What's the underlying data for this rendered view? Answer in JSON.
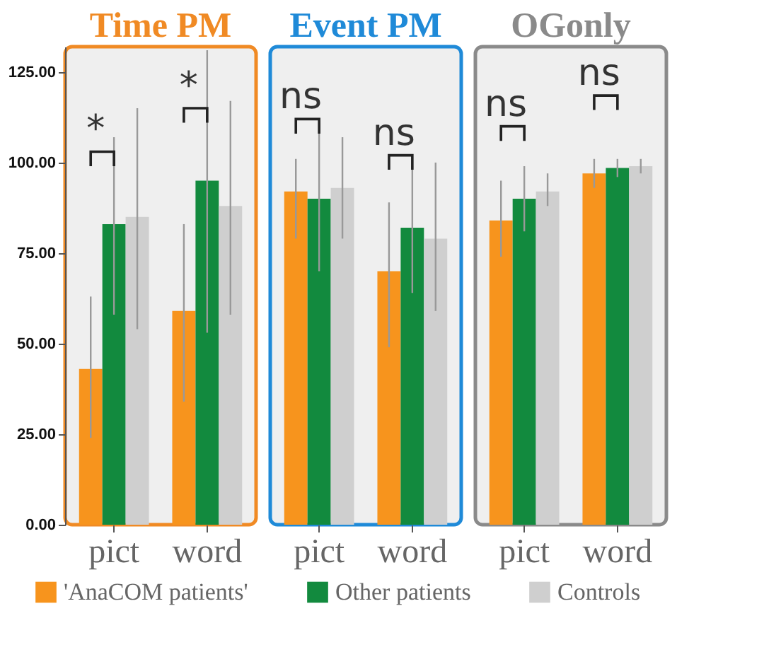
{
  "chart_data": [
    {
      "type": "bar",
      "title": "Time PM",
      "categories": [
        "pict",
        "word"
      ],
      "ylim": [
        0,
        132
      ],
      "yticks": [
        {
          "value": 0,
          "label": "0.00"
        },
        {
          "value": 25,
          "label": "25.00"
        },
        {
          "value": 50,
          "label": "50.00"
        },
        {
          "value": 75,
          "label": "75.00"
        },
        {
          "value": 100,
          "label": "100.00"
        },
        {
          "value": 125,
          "label": "125.00"
        }
      ],
      "series": [
        {
          "name": "'AnaCOM patients'",
          "color": "#f7941d",
          "values": [
            43,
            59
          ],
          "errors": [
            [
              24,
              63
            ],
            [
              34,
              83
            ]
          ]
        },
        {
          "name": "Other patients",
          "color": "#128a3e",
          "values": [
            83,
            95
          ],
          "errors": [
            [
              58,
              107
            ],
            [
              53,
              131
            ]
          ]
        },
        {
          "name": "Controls",
          "color": "#cfcfcf",
          "values": [
            85,
            88
          ],
          "errors": [
            [
              54,
              115
            ],
            [
              58,
              117
            ]
          ]
        }
      ],
      "annotations": [
        "*",
        "*"
      ],
      "grid": false,
      "legend": "bottom"
    },
    {
      "type": "bar",
      "title": "Event PM",
      "categories": [
        "pict",
        "word"
      ],
      "ylim": [
        0,
        132
      ],
      "series": [
        {
          "name": "'AnaCOM patients'",
          "color": "#f7941d",
          "values": [
            92,
            70
          ],
          "errors": [
            [
              79,
              101
            ],
            [
              49,
              89
            ]
          ]
        },
        {
          "name": "Other patients",
          "color": "#128a3e",
          "values": [
            90,
            82
          ],
          "errors": [
            [
              70,
              111
            ],
            [
              64,
              99
            ]
          ]
        },
        {
          "name": "Controls",
          "color": "#cfcfcf",
          "values": [
            93,
            79
          ],
          "errors": [
            [
              79,
              107
            ],
            [
              59,
              100
            ]
          ]
        }
      ],
      "annotations": [
        "ns",
        "ns"
      ],
      "grid": false,
      "legend": "bottom",
      "tick_labels": "x"
    },
    {
      "type": "bar",
      "title": "OGonly",
      "categories": [
        "pict",
        "word"
      ],
      "ylim": [
        0,
        132
      ],
      "series": [
        {
          "name": "'AnaCOM patients'",
          "color": "#f7941d",
          "values": [
            84,
            97
          ],
          "errors": [
            [
              74,
              95
            ],
            [
              93,
              101
            ]
          ]
        },
        {
          "name": "Other patients",
          "color": "#128a3e",
          "values": [
            90,
            98.5
          ],
          "errors": [
            [
              81,
              99
            ],
            [
              96,
              101
            ]
          ]
        },
        {
          "name": "Controls",
          "color": "#cfcfcf",
          "values": [
            92,
            99
          ],
          "errors": [
            [
              88,
              97
            ],
            [
              97,
              101
            ]
          ]
        }
      ],
      "annotations": [
        "ns",
        "ns"
      ],
      "grid": false,
      "legend": "bottom",
      "tick_labels": "x"
    }
  ]
}
